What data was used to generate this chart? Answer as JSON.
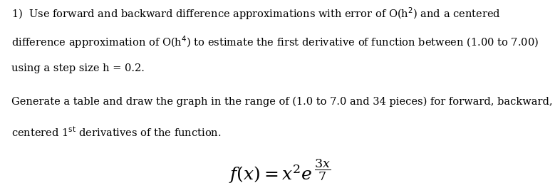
{
  "background_color": "#ffffff",
  "figsize": [
    7.86,
    2.71
  ],
  "dpi": 100,
  "line1": "1)  Use forward and backward difference approximations with error of O(h²) and a centered",
  "line2": "difference approximation of O(h⁴) to estimate the first derivative of function between (1.00 to 7.00)",
  "line3": "using a step size h = 0.2.",
  "line4": "Generate a table and draw the graph in the range of (1.0 to 7.0 and 34 pieces) for forward, backward,",
  "line5": "centered 1ˢᵗ derivatives of the function.",
  "formula_main": "$f(x) = x^2e^{\\,\\overline{\\phantom{XX}}}$",
  "text_color": "#000000",
  "font_size_body": 10.5,
  "font_size_formula": 16
}
